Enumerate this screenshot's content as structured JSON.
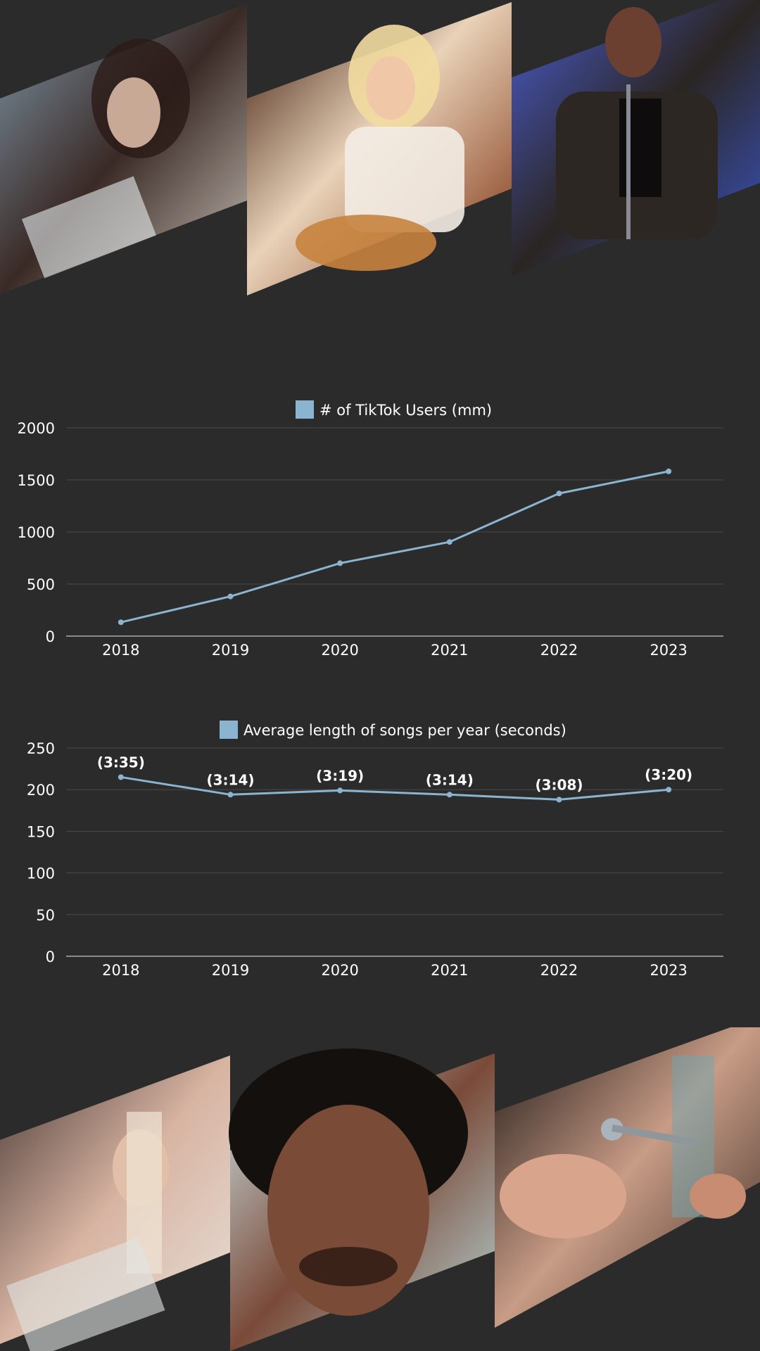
{
  "colors": {
    "background": "#2b2b2b",
    "series": "#8ab4cf",
    "grid": "#4a4a4a",
    "axis": "#8a8a8a",
    "text": "#ffffff"
  },
  "photos_top": [
    {
      "name": "singer-photo-1",
      "desc_icon": "performer-with-microphone"
    },
    {
      "name": "singer-photo-2",
      "desc_icon": "performer-with-guitar"
    },
    {
      "name": "singer-photo-3",
      "desc_icon": "performer-in-leather-jacket"
    }
  ],
  "photos_bottom": [
    {
      "name": "singer-photo-4",
      "desc_icon": "performer-portrait"
    },
    {
      "name": "singer-photo-5",
      "desc_icon": "performer-closeup"
    },
    {
      "name": "singer-photo-6",
      "desc_icon": "performer-singing"
    }
  ],
  "chart_data": [
    {
      "type": "line",
      "x": [
        "2018",
        "2019",
        "2020",
        "2021",
        "2022",
        "2023"
      ],
      "series": [
        {
          "name": "# of TikTok Users (mm)",
          "values": [
            133,
            381,
            700,
            904,
            1370,
            1582
          ]
        }
      ],
      "yticks": [
        "0",
        "500",
        "1000",
        "1500",
        "2000"
      ],
      "ylim": [
        0,
        2000
      ],
      "grid": true,
      "legend": "top-center",
      "data_labels": []
    },
    {
      "type": "line",
      "x": [
        "2018",
        "2019",
        "2020",
        "2021",
        "2022",
        "2023"
      ],
      "series": [
        {
          "name": "Average length of songs per year (seconds)",
          "values": [
            215,
            194,
            199,
            194,
            188,
            200
          ]
        }
      ],
      "yticks": [
        "0",
        "50",
        "100",
        "150",
        "200",
        "250"
      ],
      "ylim": [
        0,
        250
      ],
      "grid": true,
      "legend": "top-center",
      "data_labels": [
        "(3:35)",
        "(3:14)",
        "(3:19)",
        "(3:14)",
        "(3:08)",
        "(3:20)"
      ]
    }
  ]
}
